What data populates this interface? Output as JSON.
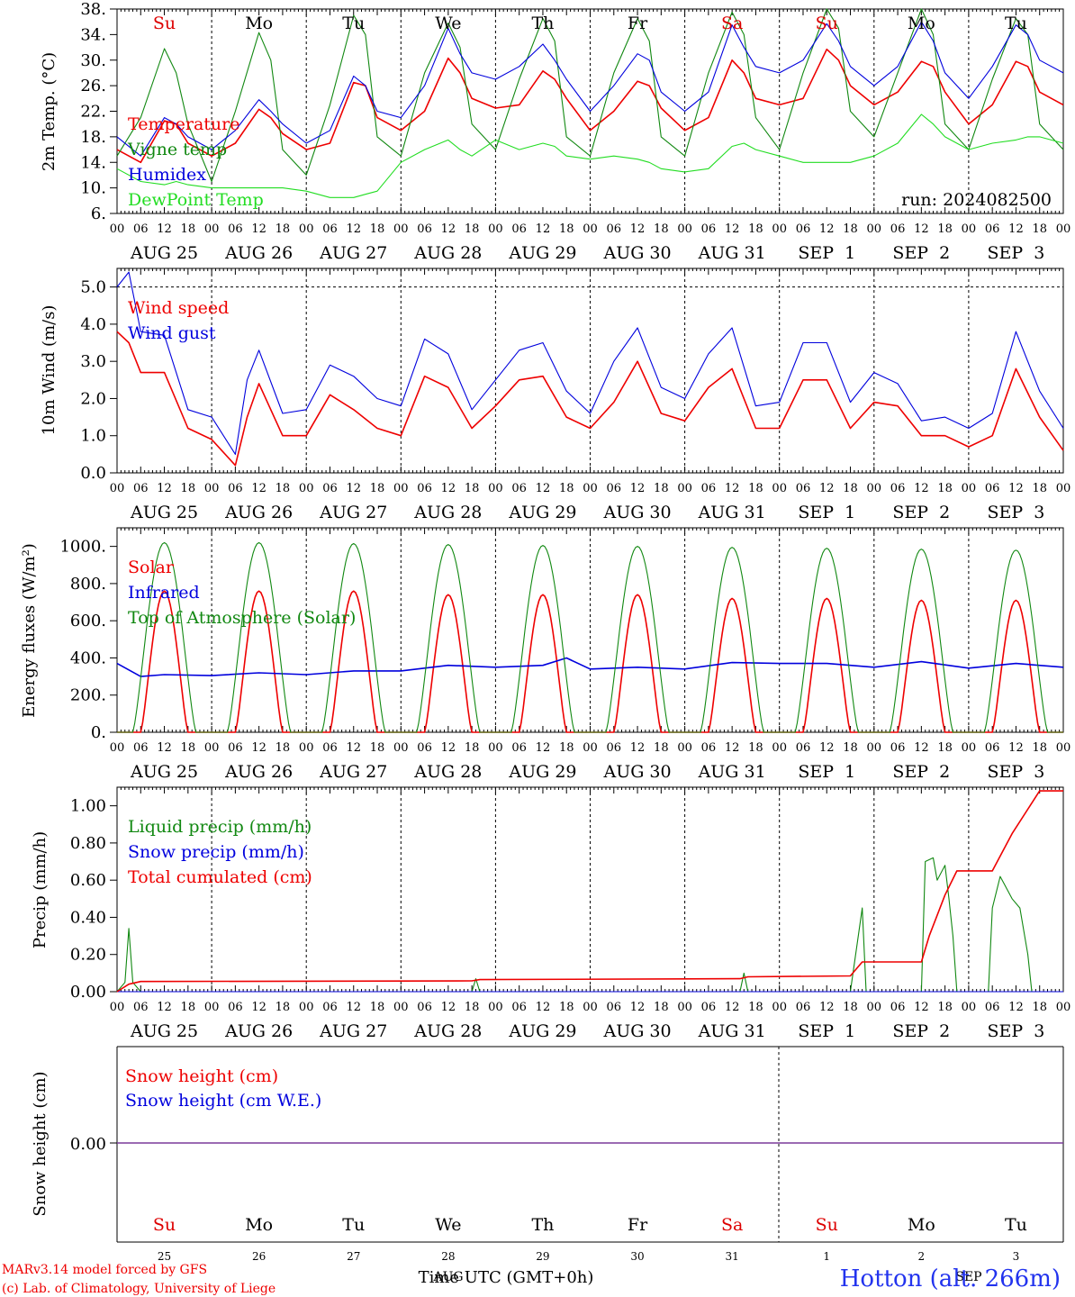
{
  "chart_data": [
    {
      "type": "line",
      "ylabel": "2m Temp. (°C)",
      "ylim": [
        6,
        38
      ],
      "yticks": [
        6,
        10,
        14,
        18,
        22,
        26,
        30,
        34,
        38
      ],
      "ytick_labels": [
        "6.",
        "10.",
        "14.",
        "18.",
        "22.",
        "26.",
        "30.",
        "34.",
        "38."
      ],
      "annotation": "run: 2024082500",
      "weekdays": [
        "Su",
        "Mo",
        "Tu",
        "We",
        "Th",
        "Fr",
        "Sa",
        "Su",
        "Mo",
        "Tu"
      ],
      "weekday_colors": [
        "#dd0000",
        "#000000",
        "#000000",
        "#000000",
        "#000000",
        "#000000",
        "#dd0000",
        "#dd0000",
        "#000000",
        "#000000"
      ],
      "x_hours": [
        0,
        6,
        12,
        15,
        18,
        24,
        30,
        36,
        39,
        42,
        48,
        54,
        60,
        63,
        66,
        72,
        78,
        84,
        87,
        90,
        96,
        102,
        108,
        111,
        114,
        120,
        126,
        132,
        135,
        138,
        144,
        150,
        156,
        159,
        162,
        168,
        174,
        180,
        183,
        186,
        192,
        198,
        204,
        207,
        210,
        216,
        222,
        228,
        231,
        234,
        240
      ],
      "series": [
        {
          "name": "Temperature",
          "color": "#ee0000",
          "values": [
            16,
            14,
            20.5,
            20,
            17,
            15,
            17,
            22.3,
            21,
            18.5,
            16,
            17,
            26.5,
            26,
            21,
            19,
            22,
            30.3,
            28,
            24,
            22.5,
            23,
            28.3,
            27,
            24,
            19,
            22,
            26.7,
            26,
            22.5,
            19,
            21,
            30,
            28,
            24,
            23,
            24,
            31.7,
            30,
            26,
            23,
            25,
            29.8,
            29,
            25,
            20,
            23,
            29.8,
            29,
            25,
            23
          ]
        },
        {
          "name": "Vigne temp",
          "color": "#118811",
          "values": [
            15,
            21,
            31.8,
            28,
            20,
            11,
            22,
            34.3,
            30,
            16,
            12,
            23,
            37,
            34,
            18,
            15,
            28,
            35.8,
            32,
            20,
            16,
            27,
            36.5,
            33,
            18,
            15,
            28,
            36.5,
            33,
            18,
            15,
            28,
            37.5,
            34,
            21,
            16,
            28,
            38,
            35,
            22,
            18,
            28,
            38,
            34,
            20,
            16,
            27,
            36.5,
            34,
            20,
            16
          ]
        },
        {
          "name": "Humidex",
          "color": "#0000dd",
          "values": [
            18,
            15,
            21,
            20,
            18,
            16,
            19,
            23.8,
            22,
            20,
            17,
            19,
            27.5,
            26,
            22,
            21,
            26,
            35,
            31,
            28,
            27,
            29,
            32.5,
            30,
            27,
            22,
            26,
            31,
            30,
            25,
            22,
            25,
            35.5,
            32,
            29,
            28,
            30,
            35.7,
            33,
            29,
            26,
            29,
            36,
            33,
            28,
            24,
            29,
            35.5,
            34,
            30,
            28
          ]
        },
        {
          "name": "DewPoint Temp",
          "color": "#22dd22",
          "values": [
            13,
            11,
            10.5,
            11,
            10.5,
            10,
            10,
            10,
            10,
            10,
            9.5,
            8.5,
            8.5,
            9,
            9.5,
            14,
            16,
            17.5,
            16,
            15,
            17.5,
            16,
            17,
            16.5,
            15,
            14.5,
            15,
            14.5,
            14,
            13,
            12.5,
            13,
            16.5,
            17,
            16,
            15,
            14,
            14,
            14,
            14,
            15,
            17,
            21.5,
            20,
            18,
            16,
            17,
            17.5,
            18,
            18,
            17
          ]
        }
      ]
    },
    {
      "type": "line",
      "ylabel": "10m Wind (m/s)",
      "ylim": [
        0,
        5.5
      ],
      "yticks": [
        0,
        1,
        2,
        3,
        4,
        5
      ],
      "ytick_labels": [
        "0.0",
        "1.0",
        "2.0",
        "3.0",
        "4.0",
        "5.0"
      ],
      "reference_line": 5,
      "x_hours": [
        0,
        3,
        6,
        12,
        18,
        24,
        30,
        33,
        36,
        42,
        48,
        54,
        60,
        66,
        72,
        78,
        84,
        90,
        96,
        102,
        108,
        114,
        120,
        126,
        132,
        138,
        144,
        150,
        156,
        162,
        168,
        174,
        180,
        186,
        192,
        198,
        204,
        210,
        216,
        222,
        228,
        234,
        240
      ],
      "series": [
        {
          "name": "Wind speed",
          "color": "#ee0000",
          "values": [
            3.8,
            3.5,
            2.7,
            2.7,
            1.2,
            0.9,
            0.2,
            1.5,
            2.4,
            1.0,
            1.0,
            2.1,
            1.7,
            1.2,
            1.0,
            2.6,
            2.3,
            1.2,
            1.8,
            2.5,
            2.6,
            1.5,
            1.2,
            1.9,
            3.0,
            1.6,
            1.4,
            2.3,
            2.8,
            1.2,
            1.2,
            2.5,
            2.5,
            1.2,
            1.9,
            1.8,
            1.0,
            1.0,
            0.7,
            1.0,
            2.8,
            1.5,
            0.6
          ]
        },
        {
          "name": "Wind gust",
          "color": "#0000dd",
          "values": [
            5.0,
            5.4,
            3.8,
            3.7,
            1.7,
            1.5,
            0.5,
            2.5,
            3.3,
            1.6,
            1.7,
            2.9,
            2.6,
            2.0,
            1.8,
            3.6,
            3.2,
            1.7,
            2.5,
            3.3,
            3.5,
            2.2,
            1.6,
            3.0,
            3.9,
            2.3,
            2.0,
            3.2,
            3.9,
            1.8,
            1.9,
            3.5,
            3.5,
            1.9,
            2.7,
            2.4,
            1.4,
            1.5,
            1.2,
            1.6,
            3.8,
            2.2,
            1.2
          ]
        }
      ]
    },
    {
      "type": "line",
      "ylabel": "Energy fluxes (W/m²)",
      "ylim": [
        0,
        1100
      ],
      "yticks": [
        0,
        200,
        400,
        600,
        800,
        1000
      ],
      "ytick_labels": [
        "0.",
        "200.",
        "400.",
        "600.",
        "800.",
        "1000."
      ],
      "daily_peak_hour_utc": 12,
      "series": [
        {
          "name": "Solar",
          "color": "#ee0000",
          "daily_peaks": [
            760,
            760,
            760,
            740,
            740,
            740,
            720,
            720,
            710,
            710
          ]
        },
        {
          "name": "Infrared",
          "color": "#0000dd",
          "x_hours": [
            0,
            6,
            12,
            24,
            36,
            48,
            60,
            72,
            84,
            96,
            108,
            114,
            120,
            132,
            144,
            156,
            168,
            180,
            192,
            204,
            216,
            228,
            240
          ],
          "values": [
            370,
            300,
            310,
            305,
            320,
            310,
            330,
            330,
            360,
            350,
            360,
            400,
            340,
            350,
            340,
            375,
            370,
            370,
            350,
            380,
            345,
            370,
            350
          ]
        },
        {
          "name": "Top of Atmosphere (Solar)",
          "color": "#118811",
          "daily_peaks": [
            1020,
            1020,
            1015,
            1010,
            1005,
            1000,
            995,
            990,
            985,
            980
          ]
        }
      ]
    },
    {
      "type": "line",
      "ylabel": "Precip (mm/h)",
      "ylim": [
        0,
        1.1
      ],
      "yticks": [
        0,
        0.2,
        0.4,
        0.6,
        0.8,
        1.0
      ],
      "ytick_labels": [
        "0.00",
        "0.20",
        "0.40",
        "0.60",
        "0.80",
        "1.00"
      ],
      "series": [
        {
          "name": "Liquid precip (mm/h)",
          "color": "#118811",
          "x_hours": [
            0,
            2,
            3,
            4,
            6,
            90,
            91,
            92,
            158,
            159,
            160,
            186,
            189,
            190,
            204,
            205,
            207,
            208,
            210,
            211,
            212,
            213,
            221,
            222,
            224,
            225,
            227,
            229,
            231,
            232,
            240
          ],
          "values": [
            0,
            0.05,
            0.34,
            0.05,
            0,
            0,
            0.07,
            0,
            0,
            0.1,
            0,
            0,
            0.45,
            0,
            0,
            0.7,
            0.72,
            0.6,
            0.68,
            0.5,
            0.3,
            0,
            0,
            0.45,
            0.62,
            0.58,
            0.5,
            0.45,
            0.2,
            0,
            0
          ]
        },
        {
          "name": "Snow precip (mm/h)",
          "color": "#0000dd",
          "x_hours": [
            0,
            240
          ],
          "values": [
            0,
            0
          ]
        },
        {
          "name": "Total cumulated (cm)",
          "color": "#ee0000",
          "x_hours": [
            0,
            3,
            6,
            90,
            92,
            158,
            160,
            186,
            189,
            204,
            206,
            210,
            213,
            222,
            227,
            234,
            237,
            240
          ],
          "values": [
            0,
            0.04,
            0.055,
            0.058,
            0.065,
            0.07,
            0.08,
            0.085,
            0.16,
            0.16,
            0.3,
            0.52,
            0.65,
            0.65,
            0.85,
            1.08,
            1.08,
            1.08
          ]
        }
      ]
    },
    {
      "type": "line",
      "ylabel": "Snow height (cm)",
      "ytick_labels": [
        "0.00"
      ],
      "weekdays": [
        "Su",
        "Mo",
        "Tu",
        "We",
        "Th",
        "Fr",
        "Sa",
        "Su",
        "Mo",
        "Tu"
      ],
      "weekday_colors": [
        "#dd0000",
        "#000000",
        "#000000",
        "#000000",
        "#000000",
        "#000000",
        "#dd0000",
        "#dd0000",
        "#000000",
        "#000000"
      ],
      "day_numbers": [
        "25",
        "26",
        "27",
        "28",
        "29",
        "30",
        "31",
        "1",
        "2",
        "3"
      ],
      "series": [
        {
          "name": "Snow height (cm)",
          "color": "#ee0000",
          "values": [
            0,
            0
          ]
        },
        {
          "name": "Snow height (cm W.E.)",
          "color": "#0000dd",
          "values": [
            0,
            0
          ]
        }
      ]
    }
  ],
  "x_axis": {
    "hour_labels": [
      "00",
      "06",
      "12",
      "18"
    ],
    "final_hour_label": "00",
    "date_labels": [
      "AUG 25",
      "AUG 26",
      "AUG 27",
      "AUG 28",
      "AUG 29",
      "AUG 30",
      "AUG 31",
      "SEP  1",
      "SEP  2",
      "SEP  3"
    ]
  },
  "footer": {
    "model_line": "MARv3.14 model forced by GFS",
    "credit_line": "(c) Lab. of Climatology, University of Liege",
    "time_label": "Time UTC (GMT+0h)",
    "overlap_month": "AUG",
    "overlap_month_right": "SEP",
    "station": "Hotton (alt. 266m)"
  },
  "colors": {
    "red": "#ee0000",
    "green": "#118811",
    "blue": "#0000dd",
    "lightgreen": "#22dd22",
    "purple": "#7a3a9a"
  }
}
